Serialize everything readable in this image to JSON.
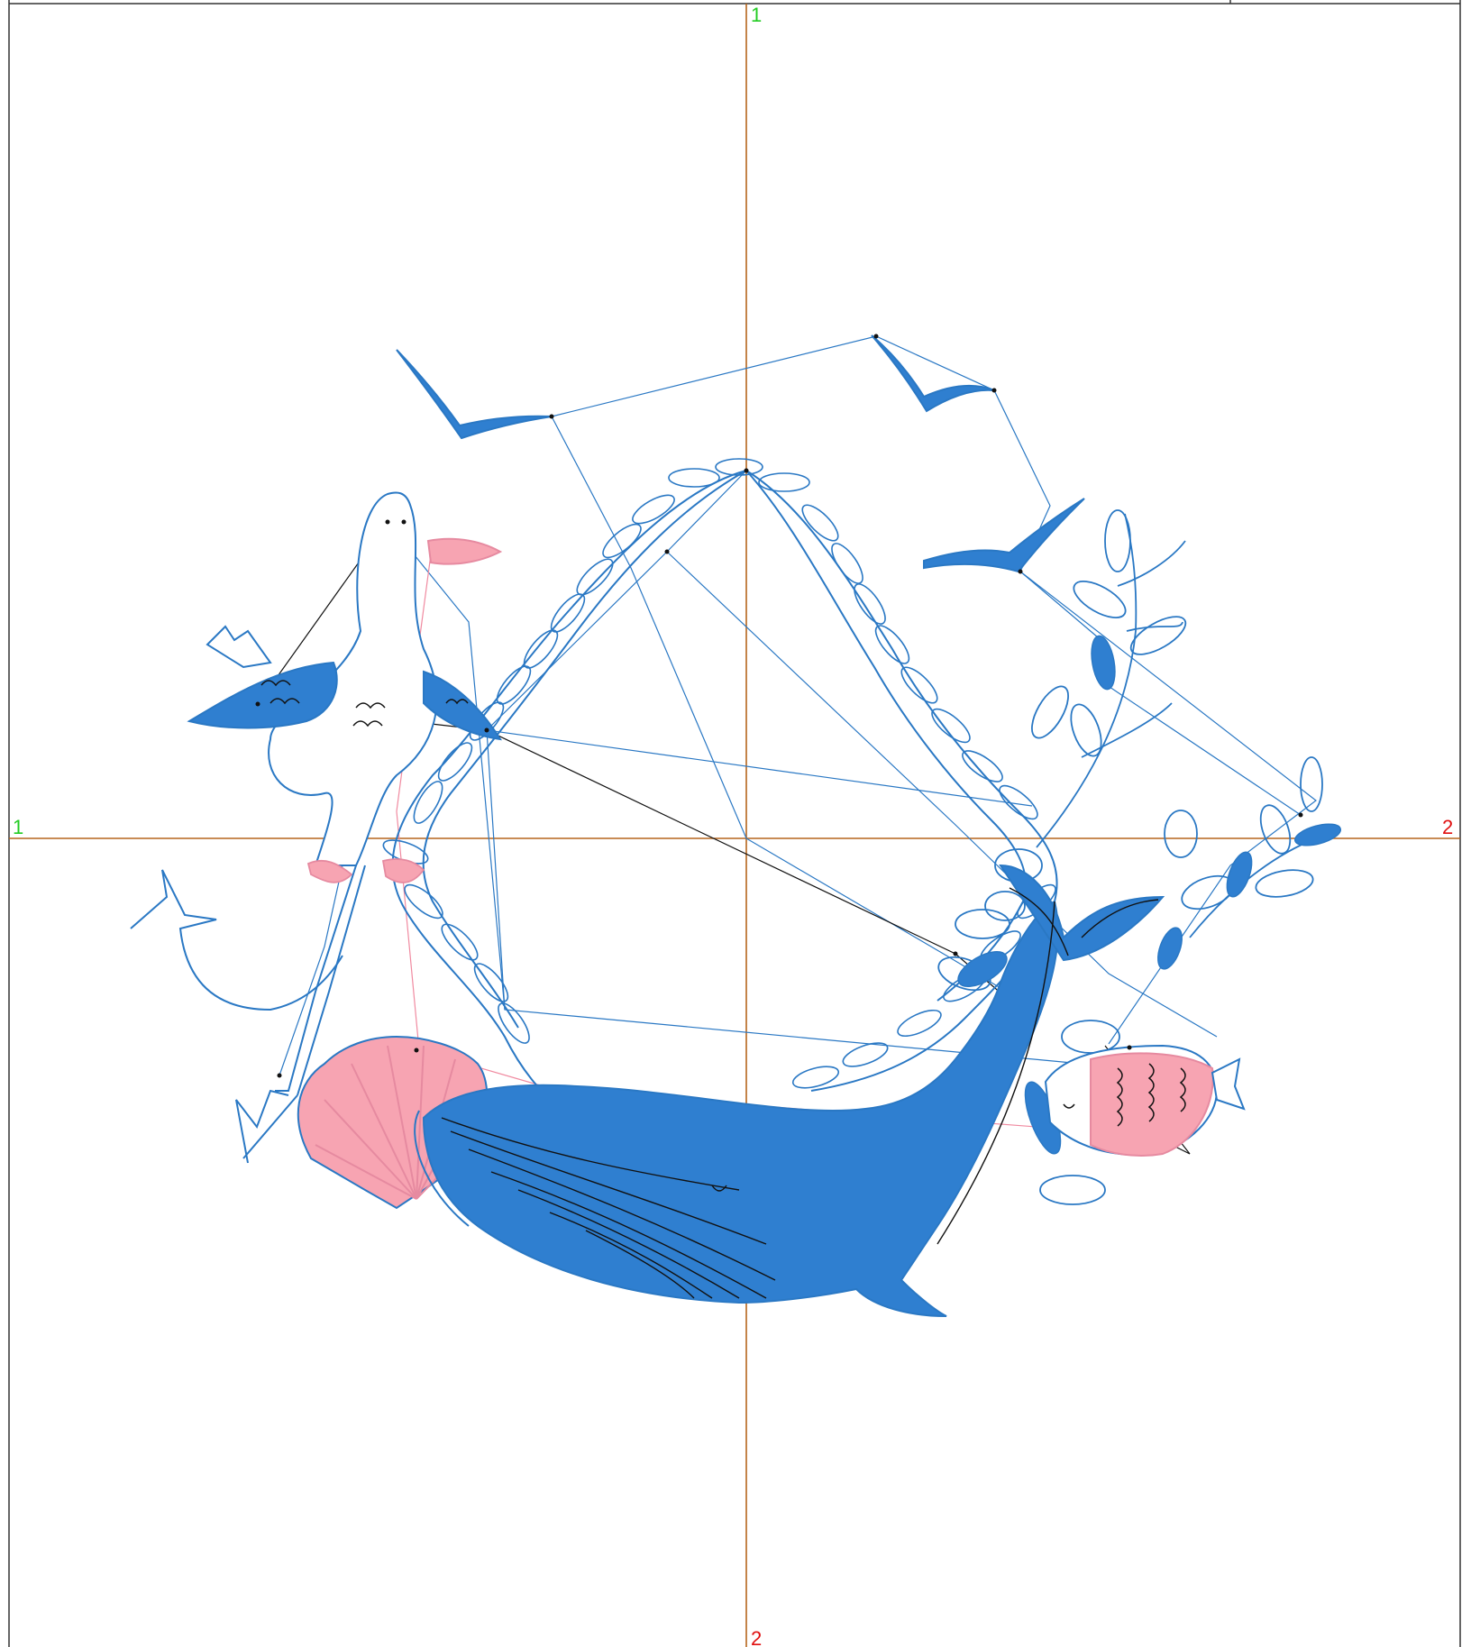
{
  "axis_labels": {
    "vertical_top": "1",
    "vertical_bottom": "2",
    "horizontal_left": "1",
    "horizontal_right": "2"
  },
  "colors": {
    "thread_blue": "#2a78c4",
    "fill_blue": "#2f7fd0",
    "thread_pink": "#f08aa0",
    "fill_pink": "#f7a4b2",
    "jump_black": "#111111",
    "guide_line": "#b5651d",
    "frame": "#333333"
  },
  "motifs": [
    {
      "name": "seagull-1",
      "kind": "bird"
    },
    {
      "name": "seagull-2",
      "kind": "bird"
    },
    {
      "name": "seagull-3",
      "kind": "bird"
    },
    {
      "name": "rope-wreath",
      "kind": "rope"
    },
    {
      "name": "pelican",
      "kind": "bird"
    },
    {
      "name": "anchor",
      "kind": "anchor"
    },
    {
      "name": "scallop-shell",
      "kind": "shell"
    },
    {
      "name": "whale",
      "kind": "whale"
    },
    {
      "name": "fish",
      "kind": "fish"
    },
    {
      "name": "leafy-branch",
      "kind": "plant"
    }
  ]
}
